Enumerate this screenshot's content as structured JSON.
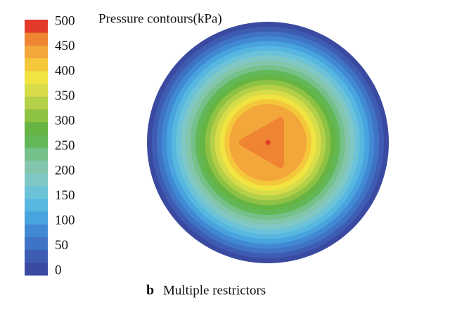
{
  "chart_data": {
    "type": "contour",
    "title": "Pressure contours(kPa)",
    "caption_label": "b",
    "caption": "Multiple restrictors",
    "clim": [
      0,
      500
    ],
    "cticks": [
      0,
      50,
      100,
      150,
      200,
      250,
      300,
      350,
      400,
      450,
      500
    ],
    "colors": [
      "#3a4aa0",
      "#3d5cb2",
      "#3f73c6",
      "#4289d3",
      "#48a3de",
      "#58b7e0",
      "#6cc3d8",
      "#80c8c6",
      "#84c6ac",
      "#76c08a",
      "#62b857",
      "#66b443",
      "#8ec243",
      "#b4cf48",
      "#d8dc48",
      "#f0e342",
      "#f5c73b",
      "#f3a63a",
      "#ef8433",
      "#e33a2a"
    ]
  }
}
